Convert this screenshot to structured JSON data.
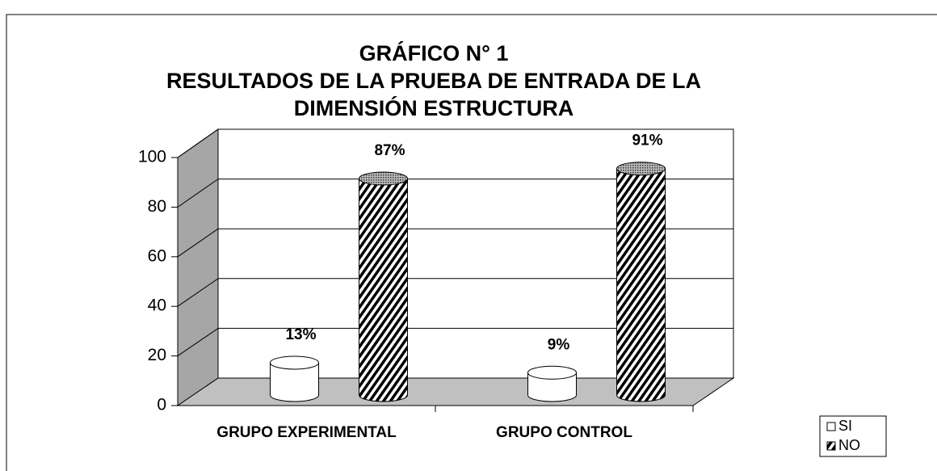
{
  "chart_data": {
    "type": "bar3d-cylinder",
    "title": [
      "GRÁFICO N° 1",
      "RESULTADOS DE LA PRUEBA DE ENTRADA DE LA",
      "DIMENSIÓN ESTRUCTURA"
    ],
    "categories": [
      "GRUPO EXPERIMENTAL",
      "GRUPO CONTROL"
    ],
    "series": [
      {
        "name": "SI",
        "color": "#ffffff",
        "values": [
          13,
          9
        ],
        "value_labels": [
          "13%",
          "9%"
        ]
      },
      {
        "name": "NO",
        "color": "hatch",
        "values": [
          87,
          91
        ],
        "value_labels": [
          "87%",
          "91%"
        ]
      }
    ],
    "ylim": [
      0,
      100
    ],
    "yticks": [
      0,
      20,
      40,
      60,
      80,
      100
    ],
    "grid": true,
    "legend": "bottom-right"
  }
}
